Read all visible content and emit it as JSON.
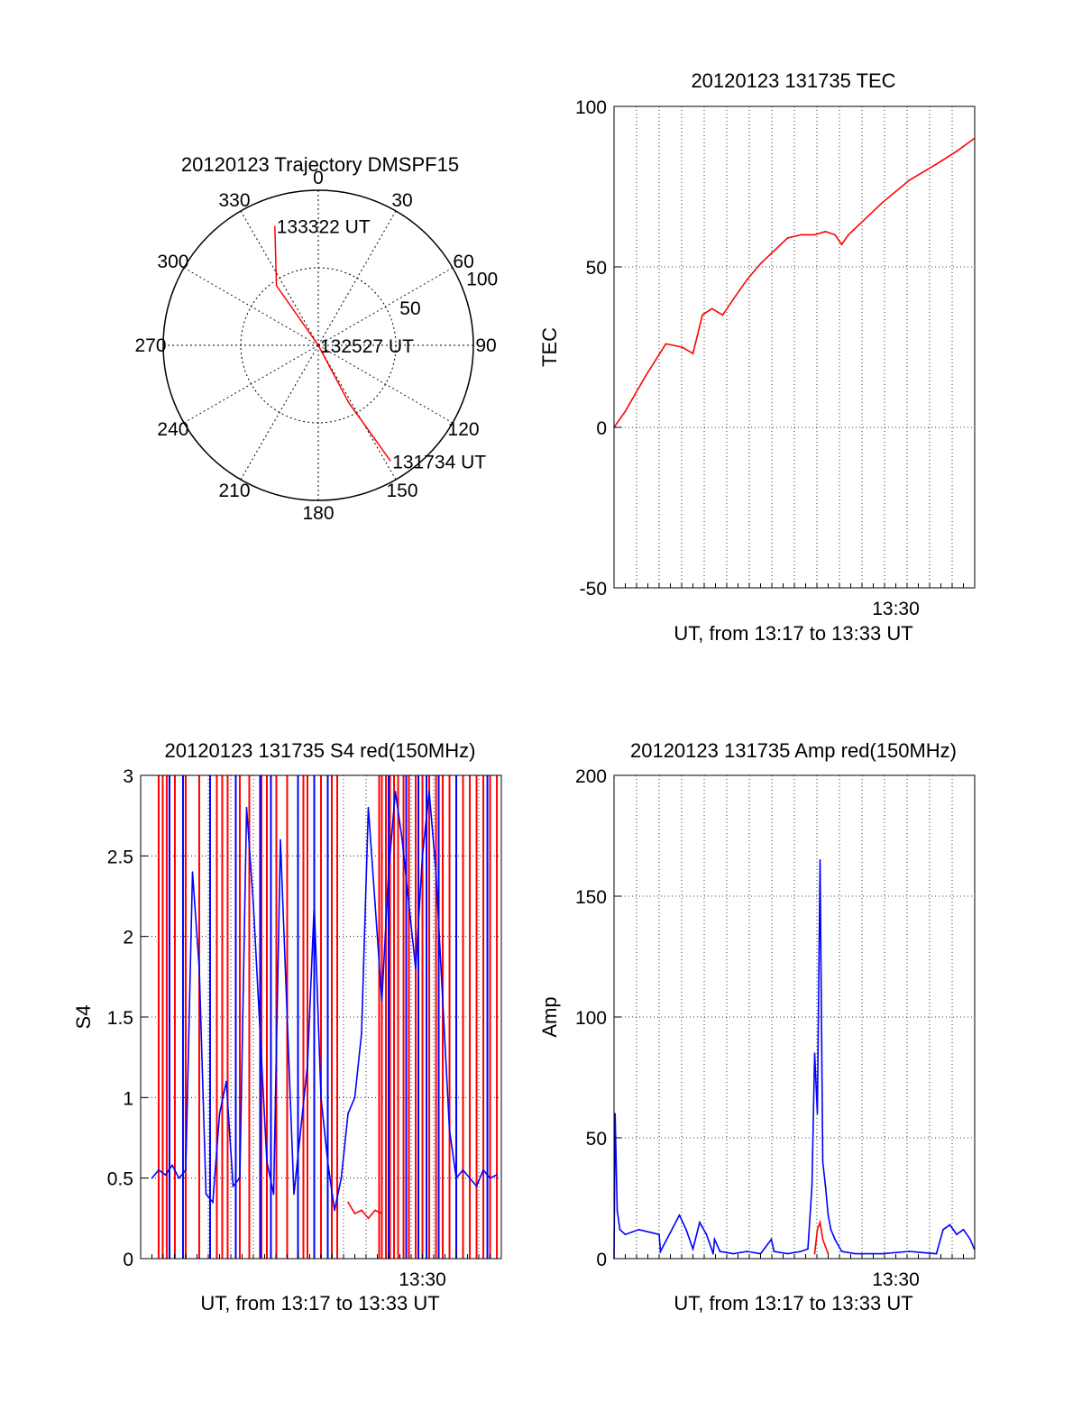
{
  "colors": {
    "red": "#ff0000",
    "blue": "#0000ff",
    "axis": "#000000",
    "grid": "#000000"
  },
  "chart_data": [
    {
      "id": "traj",
      "type": "polar",
      "title": "20120123 Trajectory DMSPF15",
      "angle_labels": [
        "0",
        "30",
        "60",
        "90",
        "120",
        "150",
        "180",
        "210",
        "240",
        "270",
        "300",
        "330"
      ],
      "radial_ticks": [
        50,
        100
      ],
      "rmax": 100,
      "trajectory": [
        [
          340,
          82
        ],
        [
          325,
          47
        ],
        [
          0,
          0
        ],
        [
          152,
          42
        ],
        [
          148,
          88
        ]
      ],
      "point_labels": [
        {
          "text": "133322 UT",
          "az": 340,
          "r": 82
        },
        {
          "text": "132527 UT",
          "az": 0,
          "r": 0
        },
        {
          "text": "131734 UT",
          "az": 148,
          "r": 88
        }
      ]
    },
    {
      "id": "tec",
      "type": "line",
      "title": "20120123 131735 TEC",
      "xlabel": "UT, from 13:17 to 13:33 UT",
      "ylabel": "TEC",
      "xlim": [
        13.2917,
        13.5583
      ],
      "ylim": [
        -50,
        100
      ],
      "yticks": [
        -50,
        0,
        50,
        100
      ],
      "xticks": [
        {
          "label": "13:30",
          "x": 13.5
        }
      ],
      "grid_x_count": 16,
      "series": [
        {
          "color": "#ff0000",
          "x": [
            13.2917,
            13.3,
            13.315,
            13.33,
            13.342,
            13.35,
            13.357,
            13.364,
            13.372,
            13.38,
            13.39,
            13.4,
            13.41,
            13.42,
            13.43,
            13.44,
            13.448,
            13.455,
            13.46,
            13.465,
            13.475,
            13.49,
            13.51,
            13.53,
            13.545,
            13.558
          ],
          "y": [
            0,
            5,
            16,
            26,
            25,
            23,
            35,
            37,
            35,
            40,
            46,
            51,
            55,
            59,
            60,
            60,
            61,
            60,
            57,
            60,
            64,
            70,
            77,
            82,
            86,
            90
          ]
        }
      ]
    },
    {
      "id": "s4",
      "type": "line",
      "title": "20120123 131735 S4 red(150MHz)",
      "xlabel": "UT, from 13:17 to 13:33 UT",
      "ylabel": "S4",
      "xlim": [
        13.2917,
        13.5583
      ],
      "ylim": [
        0,
        3
      ],
      "yticks": [
        0,
        0.5,
        1,
        1.5,
        2,
        2.5,
        3
      ],
      "xticks": [
        {
          "label": "13:30",
          "x": 13.5
        }
      ],
      "grid_x_count": 16,
      "red_spikes": [
        13.305,
        13.308,
        13.311,
        13.317,
        13.325,
        13.335,
        13.348,
        13.352,
        13.356,
        13.365,
        13.372,
        13.381,
        13.385,
        13.392,
        13.4,
        13.412,
        13.415,
        13.425,
        13.433,
        13.437,
        13.468,
        13.47,
        13.473,
        13.476,
        13.479,
        13.482,
        13.486,
        13.49,
        13.495,
        13.5,
        13.505,
        13.51,
        13.515,
        13.52,
        13.53,
        13.535,
        13.54,
        13.545,
        13.55,
        13.555
      ],
      "blue_spikes": [
        13.313,
        13.323,
        13.343,
        13.362,
        13.38,
        13.388,
        13.408,
        13.42,
        13.43,
        13.475,
        13.488,
        13.497,
        13.503,
        13.512,
        13.525,
        13.548
      ],
      "series": [
        {
          "color": "#0000ff",
          "x": [
            13.3,
            13.305,
            13.31,
            13.315,
            13.32,
            13.325,
            13.33,
            13.335,
            13.34,
            13.345,
            13.35,
            13.355,
            13.36,
            13.365,
            13.37,
            13.375,
            13.38,
            13.385,
            13.39,
            13.395,
            13.4,
            13.405,
            13.41,
            13.415,
            13.42,
            13.425,
            13.43,
            13.435,
            13.44,
            13.445,
            13.45,
            13.455,
            13.46,
            13.465,
            13.47,
            13.475,
            13.48,
            13.485,
            13.49,
            13.495,
            13.5,
            13.505,
            13.51,
            13.515,
            13.52,
            13.525,
            13.53,
            13.535,
            13.54,
            13.545,
            13.55,
            13.555
          ],
          "y": [
            0.5,
            0.55,
            0.52,
            0.58,
            0.5,
            0.55,
            2.4,
            1.8,
            0.4,
            0.35,
            0.9,
            1.1,
            0.45,
            0.5,
            2.8,
            2.2,
            1.4,
            0.6,
            0.4,
            2.6,
            1.5,
            0.4,
            0.8,
            1.2,
            2.2,
            1.0,
            0.6,
            0.3,
            0.5,
            0.9,
            1.0,
            1.4,
            2.8,
            2.2,
            1.6,
            2.4,
            2.9,
            2.6,
            2.2,
            1.8,
            2.5,
            2.9,
            2.4,
            1.6,
            0.8,
            0.5,
            0.55,
            0.5,
            0.45,
            0.55,
            0.5,
            0.52
          ]
        },
        {
          "color": "#ff0000",
          "x": [
            13.445,
            13.45,
            13.455,
            13.46,
            13.465,
            13.47
          ],
          "y": [
            0.35,
            0.28,
            0.3,
            0.25,
            0.3,
            0.28
          ]
        }
      ]
    },
    {
      "id": "amp",
      "type": "line",
      "title": "20120123 131735 Amp red(150MHz)",
      "xlabel": "UT, from 13:17 to 13:33 UT",
      "ylabel": "Amp",
      "xlim": [
        13.2917,
        13.5583
      ],
      "ylim": [
        0,
        200
      ],
      "yticks": [
        0,
        50,
        100,
        150,
        200
      ],
      "xticks": [
        {
          "label": "13:30",
          "x": 13.5
        }
      ],
      "grid_x_count": 16,
      "series": [
        {
          "color": "#0000ff",
          "x": [
            13.2917,
            13.2925,
            13.294,
            13.296,
            13.3,
            13.31,
            13.325,
            13.326,
            13.34,
            13.345,
            13.35,
            13.355,
            13.36,
            13.365,
            13.366,
            13.37,
            13.38,
            13.39,
            13.4,
            13.408,
            13.41,
            13.42,
            13.43,
            13.435,
            13.438,
            13.44,
            13.442,
            13.444,
            13.446,
            13.448,
            13.45,
            13.452,
            13.455,
            13.46,
            13.47,
            13.49,
            13.51,
            13.53,
            13.535,
            13.54,
            13.545,
            13.55,
            13.555,
            13.558
          ],
          "y": [
            0,
            60,
            20,
            12,
            10,
            12,
            10,
            3,
            18,
            12,
            4,
            15,
            10,
            2,
            8,
            3,
            2,
            3,
            2,
            8,
            3,
            2,
            3,
            4,
            30,
            85,
            60,
            165,
            40,
            30,
            18,
            12,
            8,
            3,
            2,
            2,
            3,
            2,
            12,
            14,
            10,
            12,
            8,
            4
          ]
        },
        {
          "color": "#ff0000",
          "x": [
            13.44,
            13.442,
            13.444,
            13.446,
            13.448,
            13.45
          ],
          "y": [
            2,
            12,
            15,
            8,
            5,
            2
          ]
        }
      ]
    }
  ]
}
